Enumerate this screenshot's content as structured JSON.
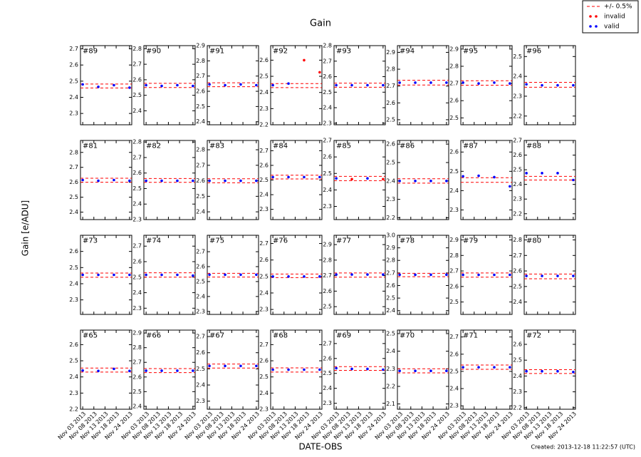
{
  "title": "Gain",
  "ylabel": "Gain [e/ADU]",
  "xlabel": "DATE-OBS",
  "created": "Created: 2013-12-18 11:22:57 (UTC)",
  "legend": [
    {
      "name": "+/- 0.5%",
      "color": "#ff0000"
    },
    {
      "name": "invalid",
      "color": "#ff0000"
    },
    {
      "name": "valid",
      "color": "#0000ff"
    }
  ],
  "x": [
    "2013-11-03",
    "2013-11-10",
    "2013-11-17",
    "2013-11-24"
  ],
  "xlim": [
    "2013-11-02",
    "2013-11-25"
  ],
  "xticks": [
    {
      "value": "2013-11-03",
      "label": "Nov 03 2013"
    },
    {
      "value": "2013-11-08",
      "label": "Nov 08 2013"
    },
    {
      "value": "2013-11-13",
      "label": "Nov 13 2013"
    },
    {
      "value": "2013-11-18",
      "label": "Nov 18 2013"
    },
    {
      "value": "2013-11-24",
      "label": "Nov 24 2013"
    }
  ],
  "chart_data": [
    {
      "type": "scatter",
      "label": "#89",
      "ylim": [
        2.23,
        2.72
      ],
      "yticks": [
        2.3,
        2.4,
        2.5,
        2.6,
        2.7
      ],
      "band": [
        2.458,
        2.482
      ],
      "valid": [
        2.48,
        2.465,
        2.475,
        2.46
      ],
      "invalid": [
        null,
        null,
        null,
        null
      ]
    },
    {
      "type": "scatter",
      "label": "#90",
      "ylim": [
        2.31,
        2.82
      ],
      "yticks": [
        2.4,
        2.5,
        2.6,
        2.7,
        2.8
      ],
      "band": [
        2.55,
        2.577
      ],
      "valid": [
        2.565,
        2.56,
        2.565,
        2.56
      ],
      "invalid": [
        null,
        null,
        null,
        null
      ]
    },
    {
      "type": "scatter",
      "label": "#91",
      "ylim": [
        2.38,
        2.9
      ],
      "yticks": [
        2.4,
        2.5,
        2.6,
        2.7,
        2.8,
        2.9
      ],
      "band": [
        2.63,
        2.656
      ],
      "valid": [
        2.645,
        2.64,
        2.645,
        2.64
      ],
      "invalid": [
        null,
        null,
        null,
        null
      ]
    },
    {
      "type": "scatter",
      "label": "#92",
      "ylim": [
        2.2,
        2.69
      ],
      "yticks": [
        2.2,
        2.3,
        2.4,
        2.5,
        2.6
      ],
      "band": [
        2.43,
        2.455
      ],
      "valid": [
        2.445,
        2.455,
        null,
        null
      ],
      "invalid": [
        null,
        null,
        2.6,
        2.525
      ]
    },
    {
      "type": "scatter",
      "label": "#93",
      "ylim": [
        2.29,
        2.8
      ],
      "yticks": [
        2.3,
        2.4,
        2.5,
        2.6,
        2.7,
        2.8
      ],
      "band": [
        2.532,
        2.558
      ],
      "valid": [
        2.545,
        2.545,
        2.545,
        2.545
      ],
      "invalid": [
        null,
        null,
        null,
        null
      ]
    },
    {
      "type": "scatter",
      "label": "#94",
      "ylim": [
        2.47,
        2.94
      ],
      "yticks": [
        2.5,
        2.6,
        2.7,
        2.8,
        2.9
      ],
      "band": [
        2.706,
        2.734
      ],
      "valid": [
        2.72,
        2.72,
        2.72,
        2.72
      ],
      "invalid": [
        null,
        null,
        null,
        null
      ]
    },
    {
      "type": "scatter",
      "label": "#95",
      "ylim": [
        2.46,
        2.92
      ],
      "yticks": [
        2.5,
        2.6,
        2.7,
        2.8,
        2.9
      ],
      "band": [
        2.69,
        2.716
      ],
      "valid": [
        2.705,
        2.7,
        2.705,
        2.7
      ],
      "invalid": [
        null,
        null,
        null,
        null
      ]
    },
    {
      "type": "scatter",
      "label": "#96",
      "ylim": [
        2.156,
        2.555
      ],
      "yticks": [
        2.2,
        2.3,
        2.4,
        2.5
      ],
      "band": [
        2.345,
        2.37
      ],
      "valid": [
        2.36,
        2.355,
        2.355,
        2.355
      ],
      "invalid": [
        null,
        null,
        null,
        null
      ]
    },
    {
      "type": "scatter",
      "label": "#81",
      "ylim": [
        2.35,
        2.88
      ],
      "yticks": [
        2.4,
        2.5,
        2.6,
        2.7,
        2.8
      ],
      "band": [
        2.6,
        2.627
      ],
      "valid": [
        2.615,
        2.61,
        2.615,
        2.61
      ],
      "invalid": [
        null,
        null,
        null,
        null
      ]
    },
    {
      "type": "scatter",
      "label": "#82",
      "ylim": [
        2.3,
        2.81
      ],
      "yticks": [
        2.3,
        2.4,
        2.5,
        2.6,
        2.7,
        2.8
      ],
      "band": [
        2.54,
        2.565
      ],
      "valid": [
        2.55,
        2.55,
        2.55,
        2.55
      ],
      "invalid": [
        null,
        null,
        null,
        null
      ]
    },
    {
      "type": "scatter",
      "label": "#83",
      "ylim": [
        2.35,
        2.86
      ],
      "yticks": [
        2.4,
        2.5,
        2.6,
        2.7,
        2.8
      ],
      "band": [
        2.587,
        2.613
      ],
      "valid": [
        2.6,
        2.6,
        2.6,
        2.6
      ],
      "invalid": [
        null,
        null,
        null,
        null
      ]
    },
    {
      "type": "scatter",
      "label": "#84",
      "ylim": [
        2.23,
        2.77
      ],
      "yticks": [
        2.3,
        2.4,
        2.5,
        2.6,
        2.7
      ],
      "band": [
        2.507,
        2.533
      ],
      "valid": [
        2.52,
        2.52,
        2.52,
        2.52
      ],
      "invalid": [
        null,
        null,
        null,
        null
      ]
    },
    {
      "type": "scatter",
      "label": "#85",
      "ylim": [
        2.22,
        2.7
      ],
      "yticks": [
        2.3,
        2.4,
        2.5,
        2.6,
        2.7
      ],
      "band": [
        2.456,
        2.482
      ],
      "valid": [
        2.47,
        null,
        2.47,
        null
      ],
      "invalid": [
        null,
        2.465,
        null,
        2.465
      ]
    },
    {
      "type": "scatter",
      "label": "#86",
      "ylim": [
        2.19,
        2.62
      ],
      "yticks": [
        2.2,
        2.3,
        2.4,
        2.5,
        2.6
      ],
      "band": [
        2.388,
        2.412
      ],
      "valid": [
        2.4,
        2.4,
        2.4,
        2.4
      ],
      "invalid": [
        null,
        null,
        null,
        null
      ]
    },
    {
      "type": "scatter",
      "label": "#87",
      "ylim": [
        2.25,
        2.66
      ],
      "yticks": [
        2.3,
        2.4,
        2.5,
        2.6
      ],
      "band": [
        2.443,
        2.467
      ],
      "valid": [
        2.474,
        2.477,
        2.47,
        2.422
      ],
      "invalid": [
        null,
        null,
        null,
        null
      ]
    },
    {
      "type": "scatter",
      "label": "#88",
      "ylim": [
        2.16,
        2.7
      ],
      "yticks": [
        2.2,
        2.3,
        2.4,
        2.5,
        2.6,
        2.7
      ],
      "band": [
        2.43,
        2.455
      ],
      "valid": [
        2.477,
        2.477,
        2.477,
        2.43
      ],
      "invalid": [
        null,
        null,
        null,
        null
      ]
    },
    {
      "type": "scatter",
      "label": "#73",
      "ylim": [
        2.21,
        2.7
      ],
      "yticks": [
        2.3,
        2.4,
        2.5,
        2.6
      ],
      "band": [
        2.44,
        2.466
      ],
      "valid": [
        2.455,
        2.455,
        2.455,
        2.455
      ],
      "invalid": [
        null,
        null,
        null,
        null
      ]
    },
    {
      "type": "scatter",
      "label": "#74",
      "ylim": [
        2.26,
        2.77
      ],
      "yticks": [
        2.3,
        2.4,
        2.5,
        2.6,
        2.7
      ],
      "band": [
        2.5,
        2.528
      ],
      "valid": [
        2.515,
        2.515,
        2.515,
        2.51
      ],
      "invalid": [
        null,
        null,
        null,
        null
      ]
    },
    {
      "type": "scatter",
      "label": "#75",
      "ylim": [
        2.28,
        2.81
      ],
      "yticks": [
        2.3,
        2.4,
        2.5,
        2.6,
        2.7
      ],
      "band": [
        2.53,
        2.555
      ],
      "valid": [
        2.546,
        2.546,
        2.546,
        2.546
      ],
      "invalid": [
        null,
        null,
        null,
        null
      ]
    },
    {
      "type": "scatter",
      "label": "#76",
      "ylim": [
        2.27,
        2.75
      ],
      "yticks": [
        2.3,
        2.4,
        2.5,
        2.6,
        2.7
      ],
      "band": [
        2.493,
        2.515
      ],
      "valid": [
        2.5,
        2.5,
        2.5,
        2.5
      ],
      "invalid": [
        null,
        null,
        null,
        null
      ]
    },
    {
      "type": "scatter",
      "label": "#77",
      "ylim": [
        2.45,
        2.96
      ],
      "yticks": [
        2.5,
        2.6,
        2.7,
        2.8,
        2.9
      ],
      "band": [
        2.69,
        2.717
      ],
      "valid": [
        2.707,
        2.707,
        2.707,
        2.707
      ],
      "invalid": [
        null,
        null,
        null,
        null
      ]
    },
    {
      "type": "scatter",
      "label": "#78",
      "ylim": [
        2.37,
        3.0
      ],
      "yticks": [
        2.4,
        2.5,
        2.6,
        2.7,
        2.8,
        2.9,
        {
          "value": 3,
          "label": "3.0"
        }
      ],
      "band": [
        2.67,
        2.697
      ],
      "valid": [
        2.686,
        2.686,
        2.686,
        2.686
      ],
      "invalid": [
        null,
        null,
        null,
        null
      ]
    },
    {
      "type": "scatter",
      "label": "#79",
      "ylim": [
        2.42,
        2.93
      ],
      "yticks": [
        2.5,
        2.6,
        2.7,
        2.8,
        2.9
      ],
      "band": [
        2.66,
        2.687
      ],
      "valid": [
        2.675,
        2.675,
        2.675,
        2.675
      ],
      "invalid": [
        null,
        null,
        null,
        null
      ]
    },
    {
      "type": "scatter",
      "label": "#80",
      "ylim": [
        2.32,
        2.83
      ],
      "yticks": [
        2.4,
        2.5,
        2.6,
        2.7,
        2.8
      ],
      "band": [
        2.55,
        2.58
      ],
      "valid": [
        2.568,
        2.568,
        2.568,
        2.568
      ],
      "invalid": [
        null,
        null,
        null,
        null
      ]
    },
    {
      "type": "scatter",
      "label": "#65",
      "ylim": [
        2.2,
        2.69
      ],
      "yticks": [
        2.2,
        2.3,
        2.4,
        2.5,
        2.6
      ],
      "band": [
        2.43,
        2.455
      ],
      "valid": [
        2.44,
        2.437,
        2.45,
        2.437
      ],
      "invalid": [
        null,
        null,
        null,
        null
      ]
    },
    {
      "type": "scatter",
      "label": "#66",
      "ylim": [
        2.38,
        2.92
      ],
      "yticks": [
        2.4,
        2.5,
        2.6,
        2.7,
        2.8,
        2.9
      ],
      "band": [
        2.63,
        2.657
      ],
      "valid": [
        2.643,
        2.643,
        2.643,
        2.643
      ],
      "invalid": [
        null,
        null,
        null,
        null
      ]
    },
    {
      "type": "scatter",
      "label": "#67",
      "ylim": [
        2.25,
        2.74
      ],
      "yticks": [
        2.3,
        2.4,
        2.5,
        2.6,
        2.7
      ],
      "band": [
        2.505,
        2.53
      ],
      "valid": [
        2.518,
        2.518,
        2.518,
        2.518
      ],
      "invalid": [
        null,
        null,
        null,
        null
      ]
    },
    {
      "type": "scatter",
      "label": "#68",
      "ylim": [
        2.3,
        2.79
      ],
      "yticks": [
        2.3,
        2.4,
        2.5,
        2.6,
        2.7
      ],
      "band": [
        2.53,
        2.556
      ],
      "valid": [
        2.545,
        2.545,
        2.545,
        2.545
      ],
      "invalid": [
        null,
        null,
        null,
        null
      ]
    },
    {
      "type": "scatter",
      "label": "#69",
      "ylim": [
        2.26,
        2.79
      ],
      "yticks": [
        2.3,
        2.4,
        2.5,
        2.6,
        2.7
      ],
      "band": [
        2.52,
        2.545
      ],
      "valid": [
        2.535,
        2.53,
        2.53,
        2.525
      ],
      "invalid": [
        null,
        null,
        null,
        null
      ]
    },
    {
      "type": "scatter",
      "label": "#70",
      "ylim": [
        2.07,
        2.52
      ],
      "yticks": [
        2.1,
        2.2,
        2.3,
        2.4,
        2.5
      ],
      "band": [
        2.277,
        2.3
      ],
      "valid": [
        2.288,
        2.288,
        2.288,
        2.288
      ],
      "invalid": [
        null,
        null,
        null,
        null
      ]
    },
    {
      "type": "scatter",
      "label": "#71",
      "ylim": [
        2.28,
        2.74
      ],
      "yticks": [
        2.3,
        2.4,
        2.5,
        2.6,
        2.7
      ],
      "band": [
        2.512,
        2.537
      ],
      "valid": [
        2.524,
        2.524,
        2.524,
        2.524
      ],
      "invalid": [
        null,
        null,
        null,
        null
      ]
    },
    {
      "type": "scatter",
      "label": "#72",
      "ylim": [
        2.19,
        2.69
      ],
      "yticks": [
        2.2,
        2.3,
        2.4,
        2.5,
        2.6
      ],
      "band": [
        2.416,
        2.44
      ],
      "valid": [
        2.43,
        2.43,
        2.43,
        2.425
      ],
      "invalid": [
        null,
        null,
        null,
        null
      ]
    }
  ]
}
